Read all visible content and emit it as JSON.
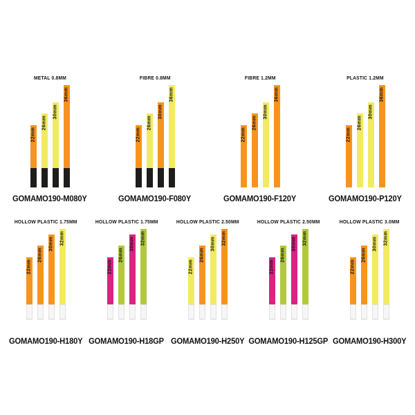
{
  "palette": {
    "orange": "#F7941D",
    "yellow": "#F2EB5F",
    "magenta": "#DB2380",
    "green": "#B2C93B",
    "stem_black": "#1D1D1B",
    "stem_white": "#F6F6F6",
    "text": "#111111",
    "background": "#FFFFFF"
  },
  "rows": [
    {
      "name": "standard-tips",
      "groups": [
        {
          "header": "METAL 0.8MM",
          "code": "GOMAMO190-M080Y",
          "stem": "black",
          "bars": [
            {
              "size": "22mm",
              "mm": 22,
              "color": "orange"
            },
            {
              "size": "26mm",
              "mm": 26,
              "color": "yellow"
            },
            {
              "size": "30mm",
              "mm": 30,
              "color": "yellow"
            },
            {
              "size": "36mm",
              "mm": 36,
              "color": "orange"
            }
          ]
        },
        {
          "header": "FIBRE 0.8MM",
          "code": "GOMAMO190-F080Y",
          "stem": "black",
          "bars": [
            {
              "size": "22mm",
              "mm": 22,
              "color": "orange"
            },
            {
              "size": "26mm",
              "mm": 26,
              "color": "yellow"
            },
            {
              "size": "30mm",
              "mm": 30,
              "color": "orange"
            },
            {
              "size": "36mm",
              "mm": 36,
              "color": "yellow"
            }
          ]
        },
        {
          "header": "FIBRE 1.2MM",
          "code": "GOMAMO190-F120Y",
          "stem": "none",
          "bars": [
            {
              "size": "22mm",
              "mm": 22,
              "color": "orange"
            },
            {
              "size": "26mm",
              "mm": 26,
              "color": "orange"
            },
            {
              "size": "30mm",
              "mm": 30,
              "color": "yellow"
            },
            {
              "size": "36mm",
              "mm": 36,
              "color": "orange"
            }
          ]
        },
        {
          "header": "PLASTIC 1.2MM",
          "code": "GOMAMO190-P120Y",
          "stem": "none",
          "bars": [
            {
              "size": "22mm",
              "mm": 22,
              "color": "orange"
            },
            {
              "size": "26mm",
              "mm": 26,
              "color": "yellow"
            },
            {
              "size": "30mm",
              "mm": 30,
              "color": "yellow"
            },
            {
              "size": "36mm",
              "mm": 36,
              "color": "orange"
            }
          ]
        }
      ]
    },
    {
      "name": "hollow-tips",
      "groups": [
        {
          "header": "HOLLOW PLASTIC 1.75MM",
          "code": "GOMAMO190-H180Y",
          "stem": "white",
          "bars": [
            {
              "size": "22mm",
              "mm": 22,
              "color": "orange"
            },
            {
              "size": "26mm",
              "mm": 26,
              "color": "orange"
            },
            {
              "size": "30mm",
              "mm": 30,
              "color": "orange"
            },
            {
              "size": "32mm",
              "mm": 32,
              "color": "yellow"
            }
          ]
        },
        {
          "header": "HOLLOW PLASTIC 1.75MM",
          "code": "GOMAMO190-H18GP",
          "stem": "white",
          "bars": [
            {
              "size": "22mm",
              "mm": 22,
              "color": "magenta"
            },
            {
              "size": "26mm",
              "mm": 26,
              "color": "green"
            },
            {
              "size": "30mm",
              "mm": 30,
              "color": "magenta"
            },
            {
              "size": "32mm",
              "mm": 32,
              "color": "green"
            }
          ]
        },
        {
          "header": "HOLLOW PLASTIC 2.50MM",
          "code": "GOMAMO190-H250Y",
          "stem": "white",
          "bars": [
            {
              "size": "22mm",
              "mm": 22,
              "color": "yellow"
            },
            {
              "size": "26mm",
              "mm": 26,
              "color": "orange"
            },
            {
              "size": "30mm",
              "mm": 30,
              "color": "yellow"
            },
            {
              "size": "32mm",
              "mm": 32,
              "color": "orange"
            }
          ]
        },
        {
          "header": "HOLLOW PLASTIC 2.50MM",
          "code": "GOMAMO190-H125GP",
          "stem": "white",
          "bars": [
            {
              "size": "22mm",
              "mm": 22,
              "color": "magenta"
            },
            {
              "size": "26mm",
              "mm": 26,
              "color": "green"
            },
            {
              "size": "30mm",
              "mm": 30,
              "color": "magenta"
            },
            {
              "size": "32mm",
              "mm": 32,
              "color": "green"
            }
          ]
        },
        {
          "header": "HOLLOW PLASTIC 3.0MM",
          "code": "GOMAMO190-H300Y",
          "stem": "white",
          "bars": [
            {
              "size": "22mm",
              "mm": 22,
              "color": "orange"
            },
            {
              "size": "26mm",
              "mm": 26,
              "color": "orange"
            },
            {
              "size": "30mm",
              "mm": 30,
              "color": "yellow"
            },
            {
              "size": "32mm",
              "mm": 32,
              "color": "yellow"
            }
          ]
        }
      ]
    }
  ]
}
